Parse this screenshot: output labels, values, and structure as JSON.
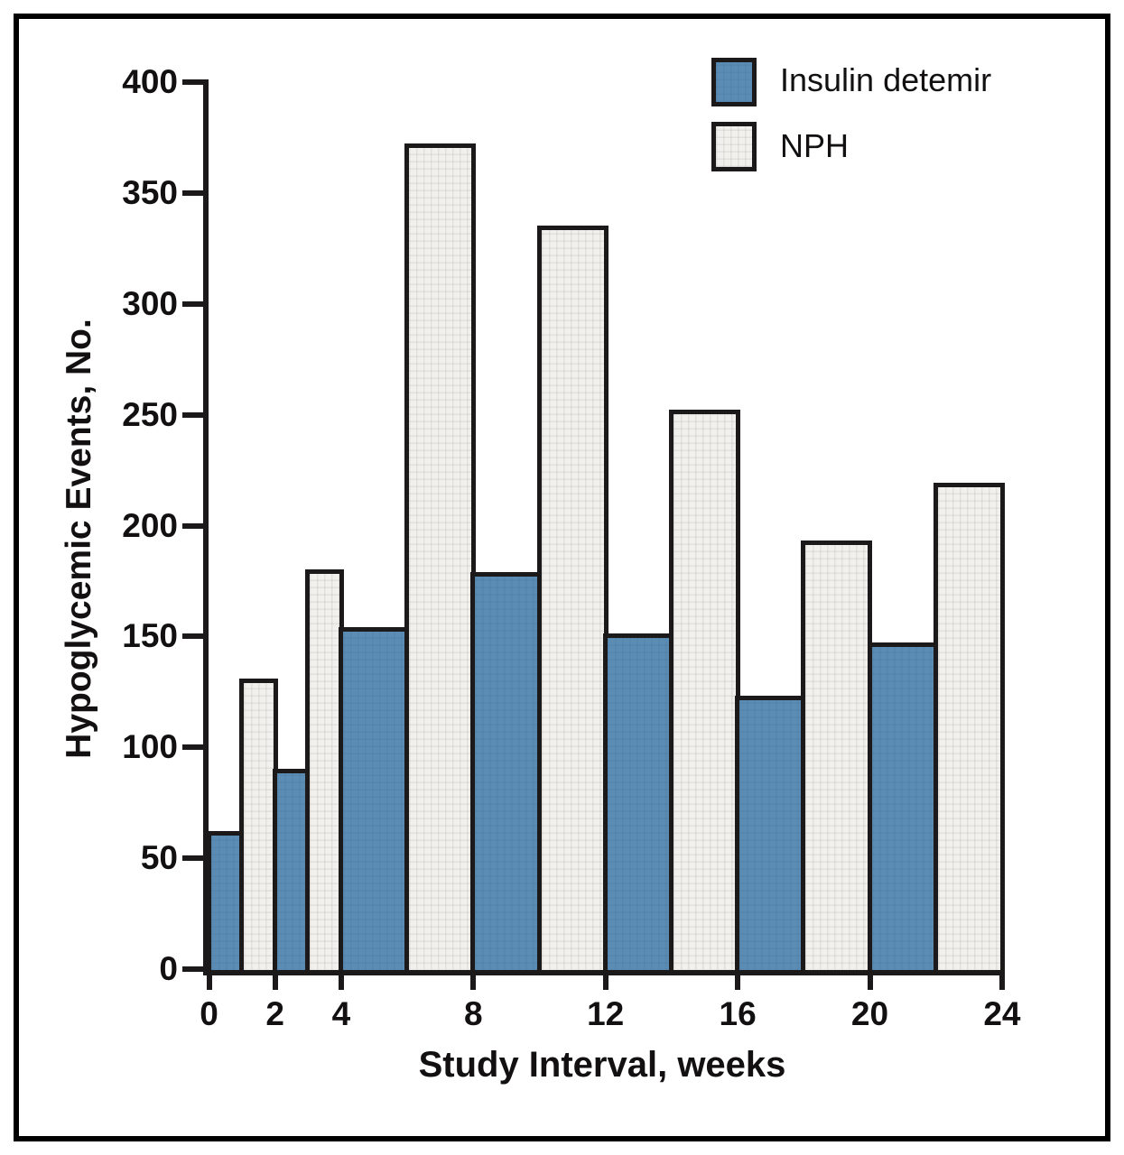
{
  "figure": {
    "background": "#ffffff",
    "frame_border_color": "#000000",
    "axis_color": "#1c191a",
    "text_color": "#121011"
  },
  "legend": {
    "position": "top-right",
    "items": [
      {
        "label": "Insulin detemir",
        "color": "#5b8cb4"
      },
      {
        "label": "NPH",
        "color": "#f1f0ed"
      }
    ]
  },
  "chart_data": {
    "type": "bar",
    "title": "",
    "xlabel": "Study Interval, weeks",
    "ylabel": "Hypoglycemic Events, No.",
    "ylim": [
      0,
      400
    ],
    "ytick_interval": 50,
    "yticks": [
      0,
      50,
      100,
      150,
      200,
      250,
      300,
      350,
      400
    ],
    "xticks": [
      0,
      2,
      4,
      8,
      12,
      16,
      20,
      24
    ],
    "grid": false,
    "bar_outline_color": "#1c191a",
    "intervals": [
      "0-2",
      "2-4",
      "4-8",
      "8-12",
      "12-16",
      "16-20",
      "20-24"
    ],
    "interval_bounds": [
      [
        0,
        2
      ],
      [
        2,
        4
      ],
      [
        4,
        8
      ],
      [
        8,
        12
      ],
      [
        12,
        16
      ],
      [
        16,
        20
      ],
      [
        20,
        24
      ]
    ],
    "series": [
      {
        "name": "Insulin detemir",
        "color": "#5b8cb4",
        "values": [
          61,
          89,
          153,
          178,
          150,
          122,
          146
        ]
      },
      {
        "name": "NPH",
        "color": "#f1f0ed",
        "values": [
          130,
          179,
          371,
          334,
          251,
          192,
          218
        ]
      }
    ]
  }
}
